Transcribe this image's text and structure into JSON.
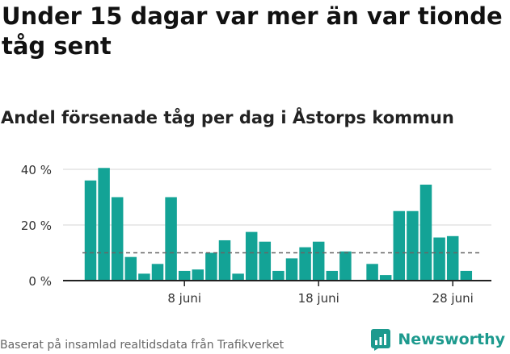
{
  "title": "Under 15 dagar var mer än var tionde tåg sent",
  "subtitle": "Andel försenade tåg per dag i Åstorps kommun",
  "source": "Baserat på insamlad realtidsdata från Trafikverket",
  "brand": {
    "name": "Newsworthy",
    "icon": "newsworthy-logo-icon"
  },
  "colors": {
    "bar": "#13a396",
    "grid": "#e3e3e3",
    "reference_line": "#666666",
    "axis": "#222222"
  },
  "chart_data": {
    "type": "bar",
    "title": "Andel försenade tåg per dag i Åstorps kommun",
    "ylabel": "",
    "ylim": [
      0,
      40
    ],
    "y_ticks": [
      {
        "value": 0,
        "label": "0 %"
      },
      {
        "value": 20,
        "label": "20 %"
      },
      {
        "value": 40,
        "label": "40 %"
      }
    ],
    "x_ticks": [
      {
        "day": 8,
        "label": "8 juni"
      },
      {
        "day": 18,
        "label": "18 juni"
      },
      {
        "day": 28,
        "label": "28 juni"
      }
    ],
    "reference_line": 10,
    "grid": "horizontal",
    "days": [
      1,
      2,
      3,
      4,
      5,
      6,
      7,
      8,
      9,
      10,
      11,
      12,
      13,
      14,
      15,
      16,
      17,
      18,
      19,
      20,
      21,
      22,
      23,
      24,
      25,
      26,
      27,
      28,
      29,
      30
    ],
    "values": [
      36,
      40.5,
      30,
      8.5,
      2.5,
      6,
      30,
      3.5,
      4,
      10,
      14.5,
      2.5,
      17.5,
      14,
      3.5,
      8,
      12,
      14,
      3.5,
      10.5,
      null,
      6,
      2,
      25,
      25,
      34.5,
      15.5,
      16,
      3.5,
      null
    ]
  }
}
